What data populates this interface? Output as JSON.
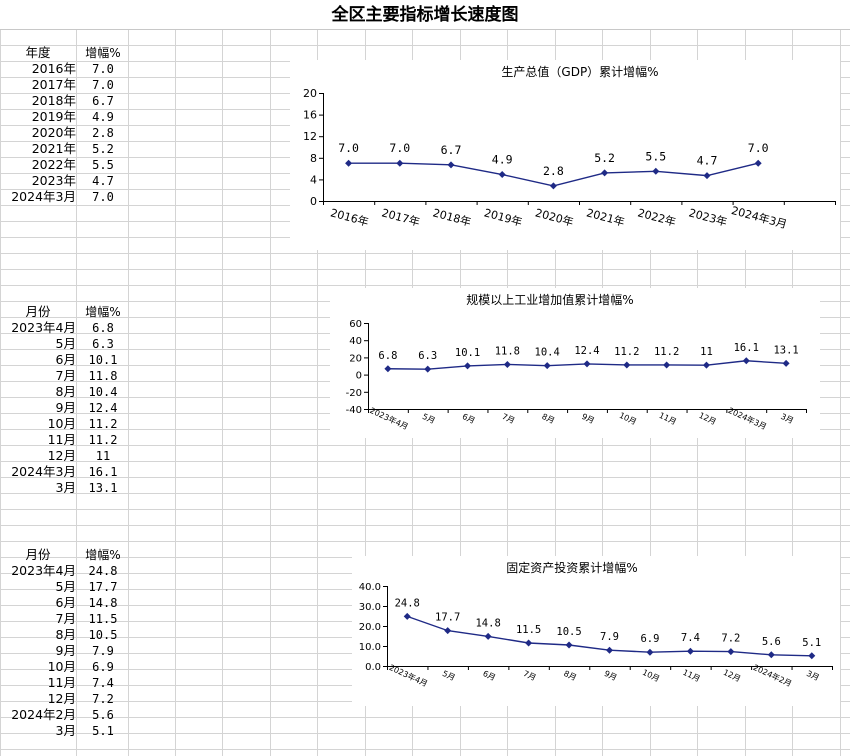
{
  "page_title": "全区主要指标增长速度图",
  "tables": [
    {
      "header": [
        "年度",
        "增幅%"
      ],
      "rows": [
        [
          "2016年",
          "7.0"
        ],
        [
          "2017年",
          "7.0"
        ],
        [
          "2018年",
          "6.7"
        ],
        [
          "2019年",
          "4.9"
        ],
        [
          "2020年",
          "2.8"
        ],
        [
          "2021年",
          "5.2"
        ],
        [
          "2022年",
          "5.5"
        ],
        [
          "2023年",
          "4.7"
        ],
        [
          "2024年3月",
          "7.0"
        ]
      ]
    },
    {
      "header": [
        "月份",
        "增幅%"
      ],
      "rows": [
        [
          "2023年4月",
          "6.8"
        ],
        [
          "5月",
          "6.3"
        ],
        [
          "6月",
          "10.1"
        ],
        [
          "7月",
          "11.8"
        ],
        [
          "8月",
          "10.4"
        ],
        [
          "9月",
          "12.4"
        ],
        [
          "10月",
          "11.2"
        ],
        [
          "11月",
          "11.2"
        ],
        [
          "12月",
          "11"
        ],
        [
          "2024年3月",
          "16.1"
        ],
        [
          "3月",
          "13.1"
        ]
      ]
    },
    {
      "header": [
        "月份",
        "增幅%"
      ],
      "rows": [
        [
          "2023年4月",
          "24.8"
        ],
        [
          "5月",
          "17.7"
        ],
        [
          "6月",
          "14.8"
        ],
        [
          "7月",
          "11.5"
        ],
        [
          "8月",
          "10.5"
        ],
        [
          "9月",
          "7.9"
        ],
        [
          "10月",
          "6.9"
        ],
        [
          "11月",
          "7.4"
        ],
        [
          "12月",
          "7.2"
        ],
        [
          "2024年2月",
          "5.6"
        ],
        [
          "3月",
          "5.1"
        ]
      ]
    }
  ],
  "chart_data": [
    {
      "type": "line",
      "title": "生产总值（GDP）累计增幅%",
      "categories": [
        "2016年",
        "2017年",
        "2018年",
        "2019年",
        "2020年",
        "2021年",
        "2022年",
        "2023年",
        "2024年3月"
      ],
      "values": [
        7.0,
        7.0,
        6.7,
        4.9,
        2.8,
        5.2,
        5.5,
        4.7,
        7.0
      ],
      "data_labels": [
        "7.0",
        "7.0",
        "6.7",
        "4.9",
        "2.8",
        "5.2",
        "5.5",
        "4.7",
        "7.0"
      ],
      "ylim": [
        0,
        20
      ],
      "yticks": [
        "0",
        "4",
        "8",
        "12",
        "16",
        "20"
      ],
      "extra_category_slots": 1,
      "color": "#1f2a86",
      "grid": false,
      "legend": "none"
    },
    {
      "type": "line",
      "title": "规模以上工业增加值累计增幅%",
      "categories": [
        "2023年4月",
        "5月",
        "6月",
        "7月",
        "8月",
        "9月",
        "10月",
        "11月",
        "12月",
        "2024年3月",
        "3月"
      ],
      "values": [
        6.8,
        6.3,
        10.1,
        11.8,
        10.4,
        12.4,
        11.2,
        11.2,
        11,
        16.1,
        13.1
      ],
      "data_labels": [
        "6.8",
        "6.3",
        "10.1",
        "11.8",
        "10.4",
        "12.4",
        "11.2",
        "11.2",
        "11",
        "16.1",
        "13.1"
      ],
      "ylim": [
        -40,
        60
      ],
      "yticks": [
        "-40",
        "-20",
        "0",
        "20",
        "40",
        "60"
      ],
      "color": "#1f2a86",
      "grid": false,
      "legend": "none"
    },
    {
      "type": "line",
      "title": "固定资产投资累计增幅%",
      "categories": [
        "2023年4月",
        "5月",
        "6月",
        "7月",
        "8月",
        "9月",
        "10月",
        "11月",
        "12月",
        "2024年2月",
        "3月"
      ],
      "values": [
        24.8,
        17.7,
        14.8,
        11.5,
        10.5,
        7.9,
        6.9,
        7.4,
        7.2,
        5.6,
        5.1
      ],
      "data_labels": [
        "24.8",
        "17.7",
        "14.8",
        "11.5",
        "10.5",
        "7.9",
        "6.9",
        "7.4",
        "7.2",
        "5.6",
        "5.1"
      ],
      "ylim": [
        0,
        40
      ],
      "yticks": [
        "0.0",
        "10.0",
        "20.0",
        "30.0",
        "40.0"
      ],
      "color": "#1f2a86",
      "grid": false,
      "legend": "none"
    }
  ]
}
